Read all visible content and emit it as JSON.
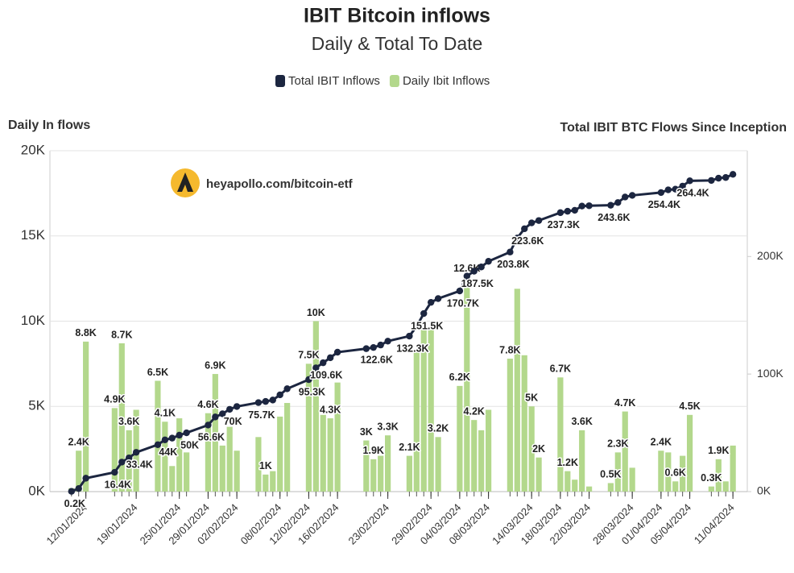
{
  "chart_data": {
    "type": "bar",
    "title": "IBIT Bitcoin inflows",
    "subtitle": "Daily & Total To Date",
    "y_label": "Daily In flows",
    "y2_label": "Total IBIT BTC Flows Since Inception",
    "watermark": "heyapollo.com/bitcoin-etf",
    "grid": true,
    "legend": "top",
    "x": [
      "10/01/2024",
      "11/01/2024",
      "12/01/2024",
      "16/01/2024",
      "17/01/2024",
      "18/01/2024",
      "19/01/2024",
      "22/01/2024",
      "23/01/2024",
      "24/01/2024",
      "25/01/2024",
      "26/01/2024",
      "29/01/2024",
      "30/01/2024",
      "31/01/2024",
      "01/02/2024",
      "02/02/2024",
      "05/02/2024",
      "06/02/2024",
      "07/02/2024",
      "08/02/2024",
      "09/02/2024",
      "12/02/2024",
      "13/02/2024",
      "14/02/2024",
      "15/02/2024",
      "16/02/2024",
      "20/02/2024",
      "21/02/2024",
      "22/02/2024",
      "23/02/2024",
      "26/02/2024",
      "27/02/2024",
      "28/02/2024",
      "29/02/2024",
      "01/03/2024",
      "04/03/2024",
      "05/03/2024",
      "06/03/2024",
      "07/03/2024",
      "08/03/2024",
      "11/03/2024",
      "12/03/2024",
      "13/03/2024",
      "14/03/2024",
      "15/03/2024",
      "18/03/2024",
      "19/03/2024",
      "20/03/2024",
      "21/03/2024",
      "22/03/2024",
      "25/03/2024",
      "26/03/2024",
      "27/03/2024",
      "28/03/2024",
      "01/04/2024",
      "02/04/2024",
      "03/04/2024",
      "04/04/2024",
      "05/04/2024",
      "08/04/2024",
      "09/04/2024",
      "10/04/2024",
      "11/04/2024"
    ],
    "xlim": [
      "07/01/2024",
      "13/04/2024"
    ],
    "xticks": [
      "12/01/2024",
      "19/01/2024",
      "25/01/2024",
      "29/01/2024",
      "02/02/2024",
      "08/02/2024",
      "12/02/2024",
      "16/02/2024",
      "23/02/2024",
      "29/02/2024",
      "04/03/2024",
      "08/03/2024",
      "14/03/2024",
      "18/03/2024",
      "22/03/2024",
      "28/03/2024",
      "01/04/2024",
      "05/04/2024",
      "11/04/2024"
    ],
    "ylim": [
      0,
      20000
    ],
    "yticks": [
      {
        "value": 0,
        "label": "0K"
      },
      {
        "value": 5000,
        "label": "5K"
      },
      {
        "value": 10000,
        "label": "10K"
      },
      {
        "value": 15000,
        "label": "15K"
      },
      {
        "value": 20000,
        "label": "20K"
      }
    ],
    "y2lim": [
      0,
      290000
    ],
    "y2ticks": [
      {
        "value": 0,
        "label": "0K"
      },
      {
        "value": 100000,
        "label": "100K"
      },
      {
        "value": 200000,
        "label": "200K"
      }
    ],
    "series": [
      {
        "name": "Total IBIT Inflows",
        "type": "line",
        "axis": "y2",
        "color": "#1c2640",
        "values": [
          200,
          2600,
          11400,
          16400,
          25100,
          28700,
          33400,
          39900,
          44000,
          45500,
          48000,
          50000,
          56600,
          63500,
          66200,
          70000,
          72400,
          75700,
          76700,
          77900,
          82300,
          87500,
          95300,
          105300,
          109600,
          113900,
          118600,
          121600,
          122600,
          124700,
          128000,
          132300,
          140500,
          151500,
          161000,
          164200,
          170700,
          183300,
          187500,
          191100,
          195900,
          203800,
          215700,
          223600,
          228600,
          230600,
          237300,
          238500,
          239300,
          242900,
          243200,
          243600,
          245900,
          250600,
          252000,
          254400,
          256700,
          257300,
          259900,
          264400,
          264700,
          266600,
          267200,
          269900
        ],
        "value_labels": [
          "0.2K",
          null,
          null,
          "16.4K",
          null,
          null,
          "33.4K",
          null,
          "44K",
          null,
          null,
          "50K",
          "56.6K",
          null,
          null,
          "70K",
          null,
          "75.7K",
          null,
          null,
          null,
          null,
          "95.3K",
          null,
          "109.6K",
          null,
          null,
          null,
          "122.6K",
          null,
          null,
          "132.3K",
          null,
          "151.5K",
          null,
          null,
          "170.7K",
          null,
          "187.5K",
          null,
          null,
          "203.8K",
          null,
          "223.6K",
          null,
          null,
          "237.3K",
          null,
          null,
          null,
          null,
          "243.6K",
          null,
          null,
          null,
          "254.4K",
          null,
          null,
          null,
          "264.4K",
          null,
          null,
          null,
          null
        ]
      },
      {
        "name": "Daily Ibit Inflows",
        "type": "bar",
        "color": "#b3d88c",
        "values": [
          200,
          2400,
          8800,
          4900,
          8700,
          3600,
          4800,
          6500,
          4100,
          1500,
          4300,
          2300,
          4600,
          6900,
          2700,
          3800,
          2400,
          3200,
          1000,
          1200,
          4400,
          5200,
          7500,
          10000,
          4500,
          4300,
          6400,
          3000,
          1900,
          2100,
          3300,
          2100,
          8200,
          9500,
          9500,
          3200,
          6200,
          12600,
          4200,
          3600,
          4800,
          7800,
          11900,
          8000,
          5000,
          2000,
          6700,
          1200,
          700,
          3600,
          300,
          500,
          2300,
          4700,
          1400,
          2400,
          2300,
          600,
          2100,
          4500,
          300,
          1900,
          600,
          2700
        ],
        "value_labels": [
          null,
          "2.4K",
          "8.8K",
          "4.9K",
          "8.7K",
          "3.6K",
          null,
          "6.5K",
          "4.1K",
          null,
          null,
          null,
          "4.6K",
          "6.9K",
          null,
          null,
          null,
          null,
          "1K",
          null,
          null,
          null,
          "7.5K",
          "10K",
          null,
          "4.3K",
          null,
          "3K",
          "1.9K",
          null,
          "3.3K",
          "2.1K",
          null,
          null,
          null,
          "3.2K",
          "6.2K",
          "12.6K",
          "4.2K",
          null,
          null,
          "7.8K",
          null,
          null,
          "5K",
          "2K",
          "6.7K",
          "1.2K",
          null,
          "3.6K",
          null,
          "0.5K",
          "2.3K",
          "4.7K",
          null,
          "2.4K",
          null,
          "0.6K",
          null,
          "4.5K",
          "0.3K",
          "1.9K",
          null,
          null
        ]
      }
    ]
  }
}
